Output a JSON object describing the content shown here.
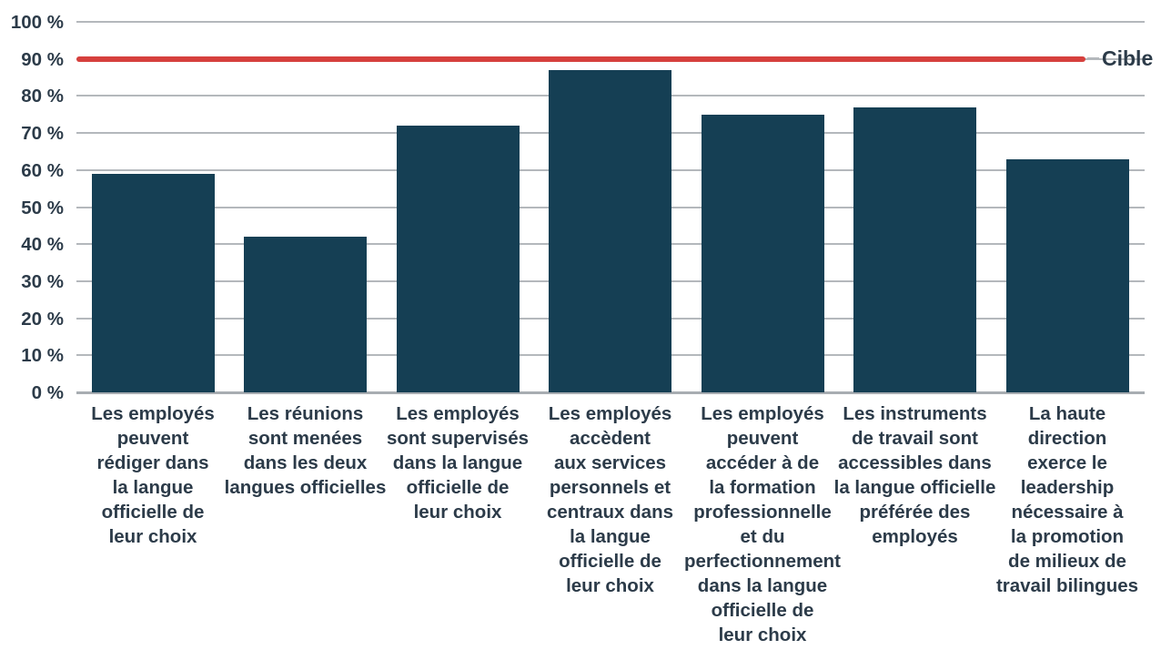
{
  "chart_data": {
    "type": "bar",
    "title": "",
    "unit": "%",
    "categories": [
      "Les employés\npeuvent\nrédiger dans\nla langue\nofficielle de\nleur choix",
      "Les réunions\nsont menées\ndans les deux\nlangues officielles",
      "Les employés\nsont supervisés\ndans la langue\nofficielle de\nleur choix",
      "Les employés\naccèdent\naux services\npersonnels et\ncentraux dans\nla langue\nofficielle de\nleur choix",
      "Les employés\npeuvent\naccéder à de\nla formation\nprofessionnelle\net du\nperfectionnement\ndans la langue\nofficielle de\nleur choix",
      "Les instruments\nde travail sont\naccessibles dans\nla langue officielle\npréférée des\nemployés",
      "La haute\ndirection\nexerce le\nleadership\nnécessaire à\nla promotion\nde milieux de\ntravail bilingues"
    ],
    "values": [
      59,
      42,
      72,
      87,
      75,
      77,
      63
    ],
    "xlabel": "",
    "ylabel": "",
    "ylim": [
      0,
      100
    ],
    "grid": true,
    "y_ticks": [
      {
        "value": 0,
        "label": "0 %"
      },
      {
        "value": 10,
        "label": "10 %"
      },
      {
        "value": 20,
        "label": "20 %"
      },
      {
        "value": 30,
        "label": "30 %"
      },
      {
        "value": 40,
        "label": "40 %"
      },
      {
        "value": 50,
        "label": "50 %"
      },
      {
        "value": 60,
        "label": "60 %"
      },
      {
        "value": 70,
        "label": "70 %"
      },
      {
        "value": 80,
        "label": "80 %"
      },
      {
        "value": 90,
        "label": "90 %"
      },
      {
        "value": 100,
        "label": "100 %"
      }
    ],
    "target_line": {
      "value": 90,
      "label": "Cible"
    },
    "legend_position": "target line labeled at right end",
    "colors": {
      "bar": "#153f54",
      "target_line": "#d6403d",
      "gridline": "#b4b8bc",
      "axis_line": "#a8adb2",
      "text": "#2c3b49"
    }
  }
}
